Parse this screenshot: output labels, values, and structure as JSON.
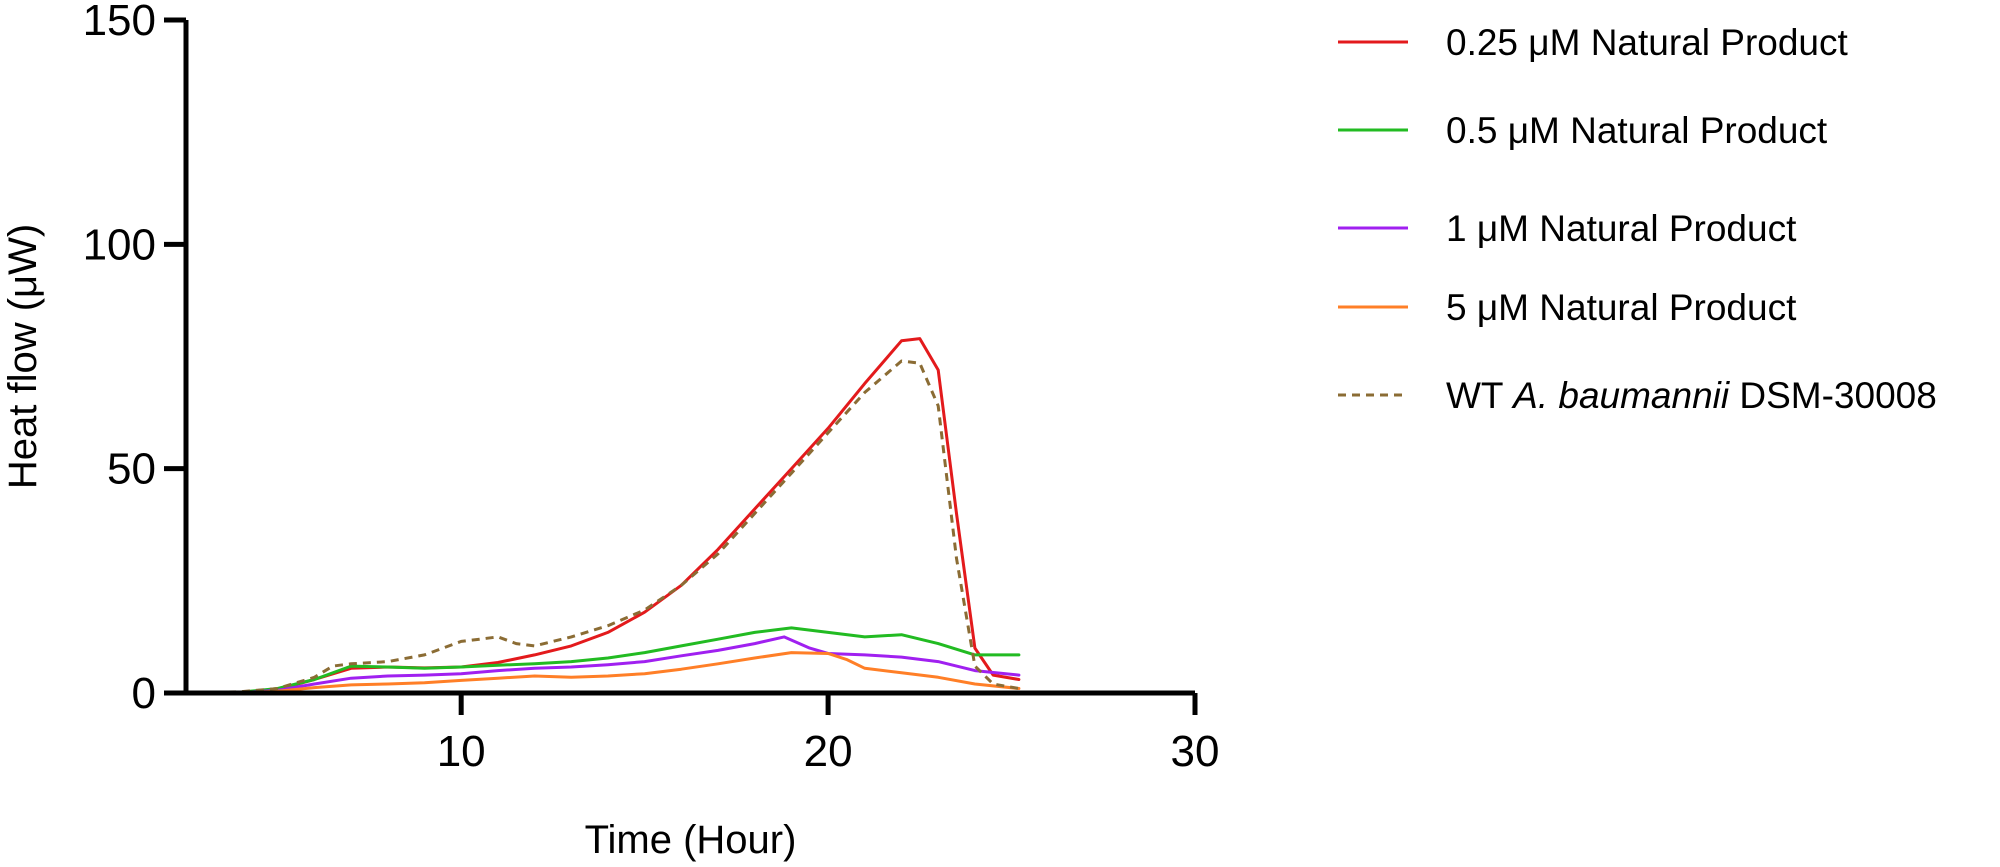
{
  "chart_data": {
    "type": "line",
    "xlabel": "Time (Hour)",
    "ylabel": "Heat flow (μW)",
    "xlim": [
      2.5,
      30
    ],
    "ylim": [
      0,
      150
    ],
    "xticks": [
      10,
      20,
      30
    ],
    "yticks": [
      0,
      50,
      100,
      150
    ],
    "grid": false,
    "legend": "right",
    "series": [
      {
        "name": "0.25 μM Natural Product",
        "legend_parts": [
          {
            "text": "0.25 μM Natural Product",
            "italic": false
          }
        ],
        "color": "#e31a1c",
        "dash": false,
        "x": [
          2.5,
          4,
          5,
          6,
          7,
          8,
          9,
          10,
          11,
          12,
          13,
          14,
          15,
          16,
          17,
          18,
          19,
          20,
          21,
          22,
          22.5,
          23,
          23.5,
          24,
          24.5,
          25.2
        ],
        "y": [
          0,
          0.2,
          0.8,
          3,
          5.5,
          5.8,
          5.6,
          5.8,
          6.8,
          8.5,
          10.5,
          13.5,
          18,
          24,
          32,
          41,
          50,
          59,
          69,
          78.5,
          79,
          72,
          40,
          10,
          4,
          3
        ]
      },
      {
        "name": "0.5 μM Natural Product",
        "legend_parts": [
          {
            "text": "0.5 μM Natural Product",
            "italic": false
          }
        ],
        "color": "#22bb22",
        "dash": false,
        "x": [
          2.5,
          4,
          5,
          6,
          7,
          8,
          9,
          10,
          11,
          12,
          13,
          14,
          15,
          16,
          17,
          18,
          19,
          20,
          21,
          22,
          23,
          24,
          25.2
        ],
        "y": [
          0,
          0.2,
          1,
          3,
          6,
          5.8,
          5.5,
          5.8,
          6.2,
          6.5,
          7,
          7.8,
          9,
          10.5,
          12,
          13.5,
          14.5,
          13.5,
          12.5,
          13,
          11,
          8.5,
          8.5
        ]
      },
      {
        "name": "1 μM Natural Product",
        "legend_parts": [
          {
            "text": "1 μM Natural Product",
            "italic": false
          }
        ],
        "color": "#a020f0",
        "dash": false,
        "x": [
          2.5,
          4,
          5,
          6,
          7,
          8,
          9,
          10,
          11,
          12,
          13,
          14,
          15,
          16,
          17,
          18,
          18.8,
          19.5,
          20,
          21,
          22,
          23,
          24,
          25.2
        ],
        "y": [
          0,
          0.1,
          0.6,
          2,
          3.3,
          3.8,
          4,
          4.3,
          5,
          5.5,
          5.8,
          6.3,
          7,
          8.3,
          9.5,
          11,
          12.5,
          10,
          8.8,
          8.5,
          8,
          7,
          5,
          4
        ]
      },
      {
        "name": "5 μM Natural Product",
        "legend_parts": [
          {
            "text": "5 μM Natural Product",
            "italic": false
          }
        ],
        "color": "#ff7f27",
        "dash": false,
        "x": [
          2.5,
          4,
          5,
          6,
          7,
          8,
          9,
          10,
          11,
          12,
          13,
          14,
          15,
          16,
          17,
          18,
          19,
          20,
          20.5,
          21,
          22,
          23,
          24,
          25.2
        ],
        "y": [
          0,
          0.1,
          0.4,
          1.2,
          1.8,
          2,
          2.3,
          2.8,
          3.3,
          3.8,
          3.5,
          3.8,
          4.3,
          5.3,
          6.5,
          7.8,
          9,
          8.8,
          7.5,
          5.5,
          4.5,
          3.5,
          2,
          1
        ]
      },
      {
        "name": "WT A. baumannii DSM-30008",
        "legend_parts": [
          {
            "text": "WT ",
            "italic": false
          },
          {
            "text": "A. baumannii",
            "italic": true
          },
          {
            "text": " DSM-30008",
            "italic": false
          }
        ],
        "color": "#8b6c34",
        "dash": true,
        "x": [
          2.5,
          4,
          5,
          6,
          6.5,
          7,
          8,
          9,
          10,
          10.5,
          11,
          11.5,
          12,
          13,
          14,
          15,
          16,
          17,
          18,
          19,
          20,
          21,
          22,
          22.5,
          23,
          23.5,
          24,
          24.5,
          25.2
        ],
        "y": [
          0,
          0.3,
          1,
          3.5,
          6,
          6.5,
          7,
          8.5,
          11.5,
          12,
          12.5,
          11,
          10.5,
          12.5,
          15,
          18.5,
          24,
          31,
          40,
          49,
          58,
          67,
          74,
          73.5,
          64,
          30,
          6,
          2,
          1
        ]
      }
    ]
  }
}
